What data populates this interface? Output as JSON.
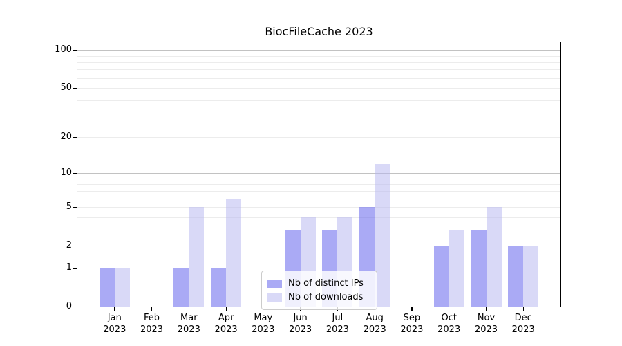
{
  "figure": {
    "background": "#ffffff"
  },
  "chart_data": {
    "type": "bar",
    "title": "BiocFileCache 2023",
    "categories": [
      "Jan 2023",
      "Feb 2023",
      "Mar 2023",
      "Apr 2023",
      "May 2023",
      "Jun 2023",
      "Jul 2023",
      "Aug 2023",
      "Sep 2023",
      "Oct 2023",
      "Nov 2023",
      "Dec 2023"
    ],
    "series": [
      {
        "name": "Nb of distinct IPs",
        "color": "#5555EB",
        "alpha": 0.5,
        "values": [
          1,
          0,
          1,
          1,
          0,
          3,
          3,
          5,
          0,
          2,
          3,
          2
        ]
      },
      {
        "name": "Nb of downloads",
        "color": "#B4B4F0",
        "alpha": 0.5,
        "values": [
          1,
          0,
          5,
          6,
          0,
          4,
          4,
          12,
          0,
          3,
          5,
          2
        ]
      }
    ],
    "xlabel": "",
    "ylabel": "",
    "yscale": "log1p",
    "ylim": [
      0,
      115
    ],
    "yticks": [
      0,
      1,
      2,
      5,
      10,
      20,
      50,
      100
    ],
    "grid": {
      "major_values": [
        1,
        10,
        100
      ],
      "minor_values": [
        2,
        3,
        4,
        5,
        6,
        7,
        8,
        9,
        20,
        30,
        40,
        50,
        60,
        70,
        80,
        90
      ],
      "major_color": "#c2c2c2",
      "minor_color": "#ececec"
    },
    "legend": {
      "position": "inside-bottom-center",
      "entries": [
        "Nb of distinct IPs",
        "Nb of downloads"
      ]
    },
    "axis_color": "#000000"
  }
}
